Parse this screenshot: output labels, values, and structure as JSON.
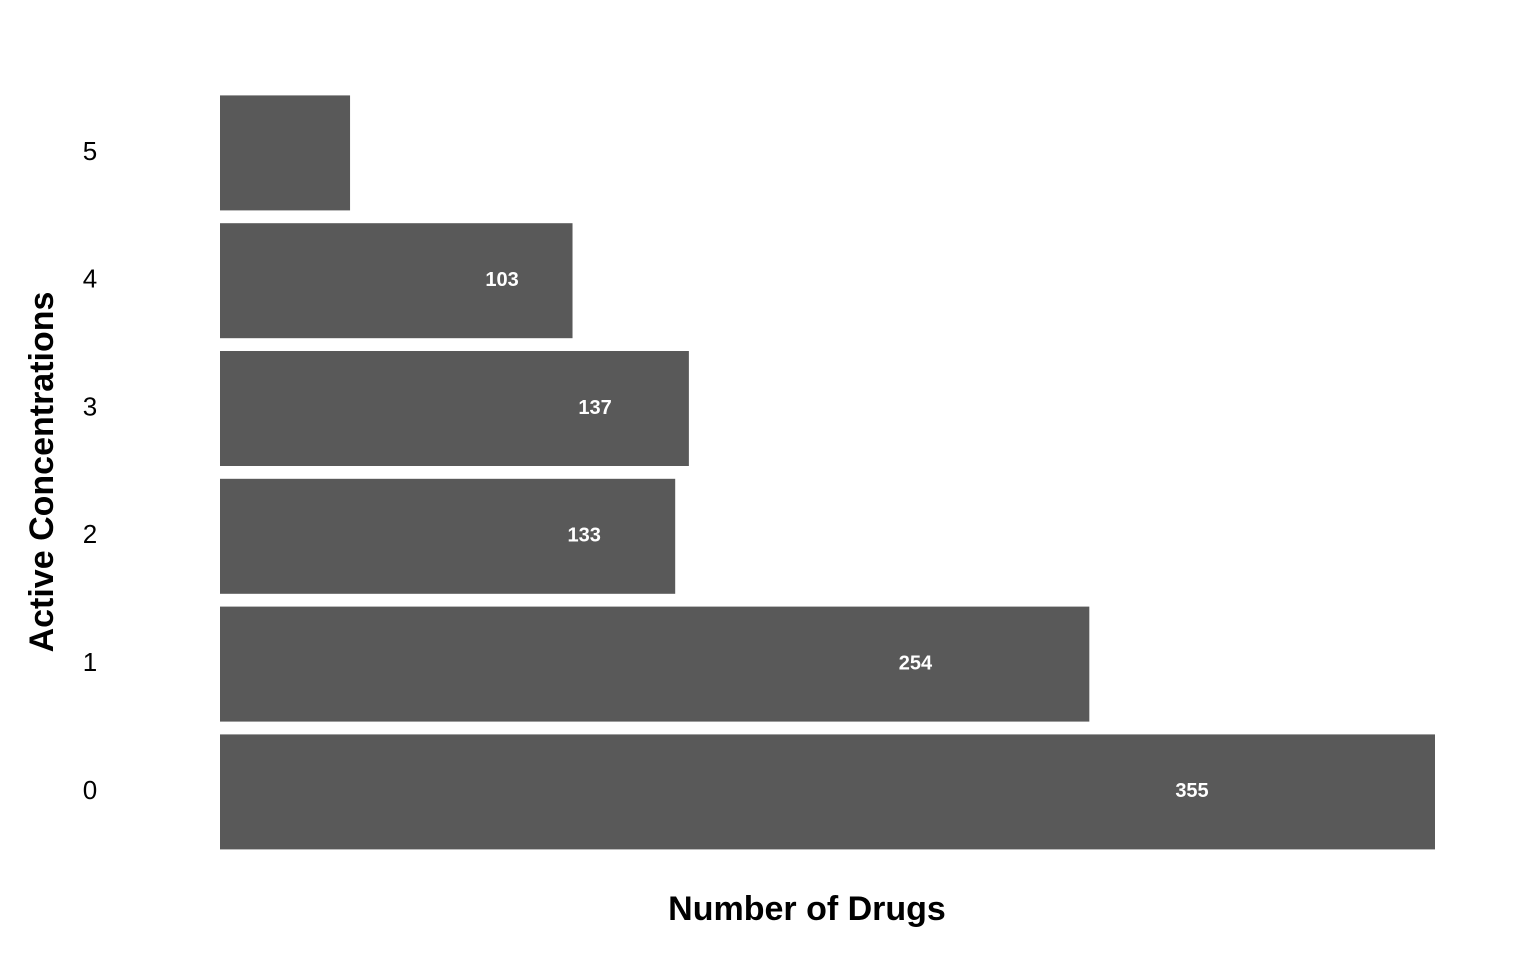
{
  "chart_data": {
    "type": "bar",
    "orientation": "horizontal",
    "title": "",
    "xlabel": "Number of Drugs",
    "ylabel": "Active Concentrations",
    "categories": [
      "0",
      "1",
      "2",
      "3",
      "4",
      "5"
    ],
    "values": [
      355,
      254,
      133,
      137,
      103,
      38
    ],
    "data_labels": [
      "355",
      "254",
      "133",
      "137",
      "103",
      ""
    ],
    "xlim": [
      0,
      355
    ],
    "grid": false,
    "legend": "none",
    "bar_color": "#595959",
    "label_color": "#ffffff"
  }
}
